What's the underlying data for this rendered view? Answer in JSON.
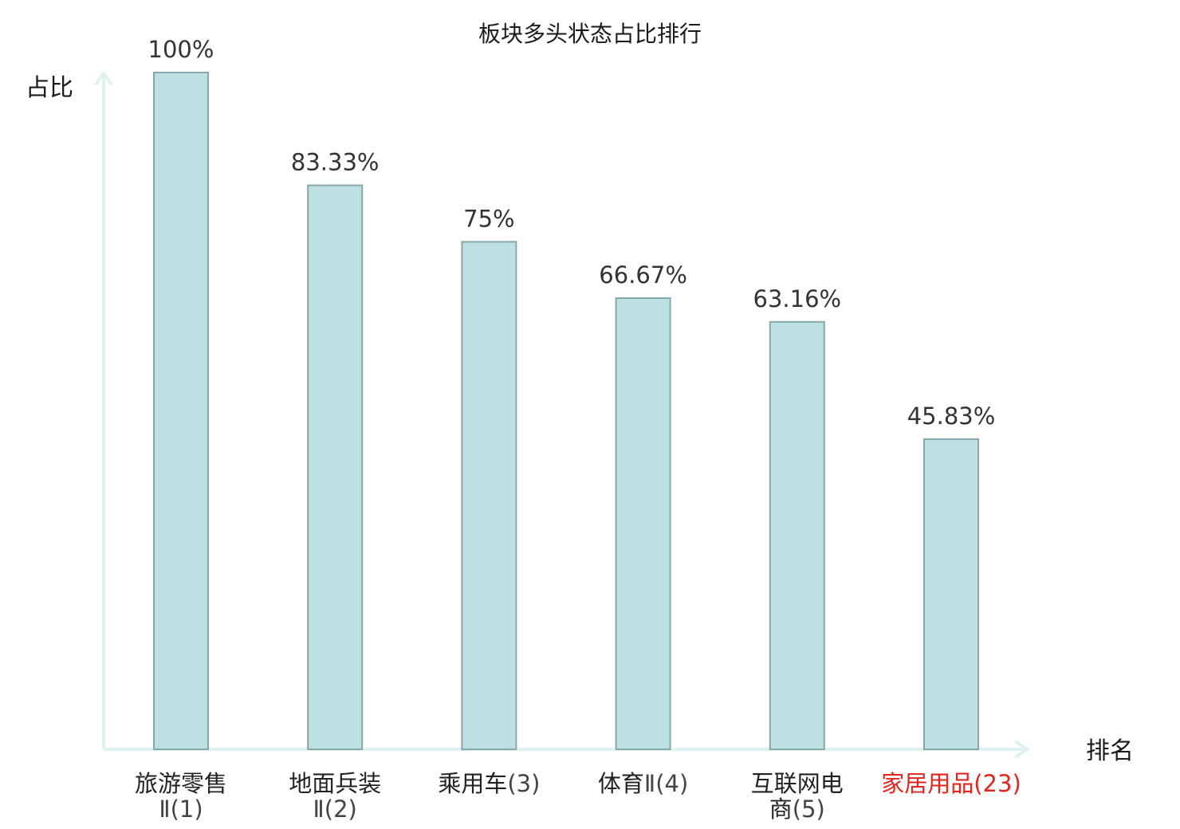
{
  "chart_data": {
    "type": "bar",
    "title": "板块多头状态占比排行",
    "ylabel": "占比",
    "xlabel": "排名",
    "ylim": [
      0,
      100
    ],
    "grid": false,
    "legend": "none",
    "bar_color": "#bde0e3",
    "bar_border_color": "#88a7a9",
    "axis_color": "#dff2ef",
    "highlight_color": "#e0261d",
    "categories": [
      {
        "lines": [
          "旅游零售",
          "Ⅱ(1)"
        ],
        "highlight": false
      },
      {
        "lines": [
          "地面兵装",
          "Ⅱ(2)"
        ],
        "highlight": false
      },
      {
        "lines": [
          "乘用车(3)"
        ],
        "highlight": false
      },
      {
        "lines": [
          "体育Ⅱ(4)"
        ],
        "highlight": false
      },
      {
        "lines": [
          "互联网电",
          "商(5)"
        ],
        "highlight": false
      },
      {
        "lines": [
          "家居用品(23)"
        ],
        "highlight": true
      }
    ],
    "values": [
      100,
      83.33,
      75,
      66.67,
      63.16,
      45.83
    ],
    "value_labels": [
      "100%",
      "83.33%",
      "75%",
      "66.67%",
      "63.16%",
      "45.83%"
    ]
  }
}
